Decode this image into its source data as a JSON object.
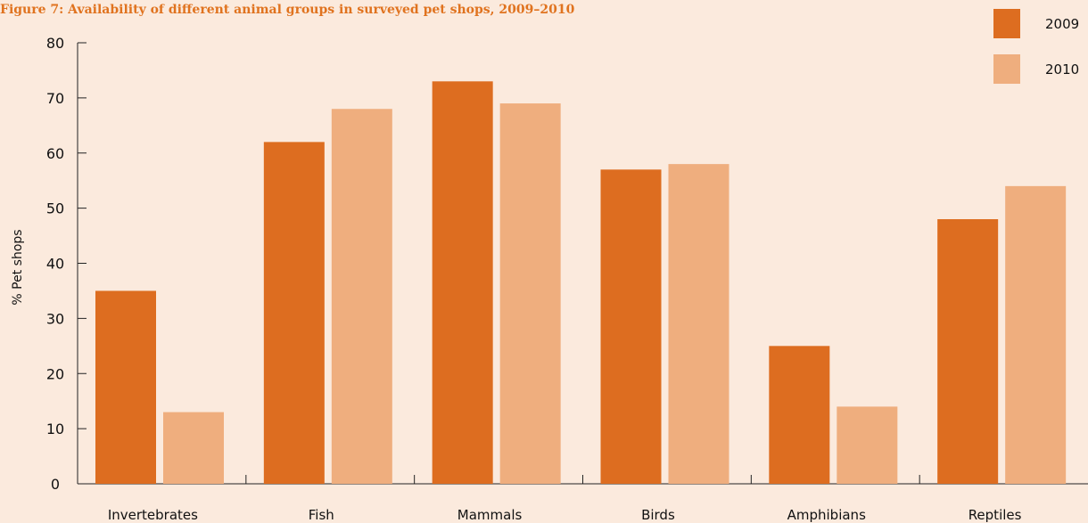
{
  "chart_data": {
    "type": "bar",
    "title": "Figure 7: Availability of different animal groups in surveyed pet shops, 2009–2010",
    "ylabel": "% Pet shops",
    "xlabel": "",
    "ylim": [
      0,
      80
    ],
    "yticks": [
      0,
      10,
      20,
      30,
      40,
      50,
      60,
      70,
      80
    ],
    "categories": [
      "Invertebrates",
      "Fish",
      "Mammals",
      "Birds",
      "Amphibians",
      "Reptiles"
    ],
    "series": [
      {
        "name": "2009",
        "color": "#dd6d20",
        "values": [
          35,
          62,
          73,
          57,
          25,
          48
        ]
      },
      {
        "name": "2010",
        "color": "#efae7e",
        "values": [
          13,
          68,
          69,
          58,
          14,
          54
        ]
      }
    ],
    "legend_position": "top-right",
    "grid": false,
    "title_color": "#e0731f",
    "background": "#fbeadd"
  }
}
